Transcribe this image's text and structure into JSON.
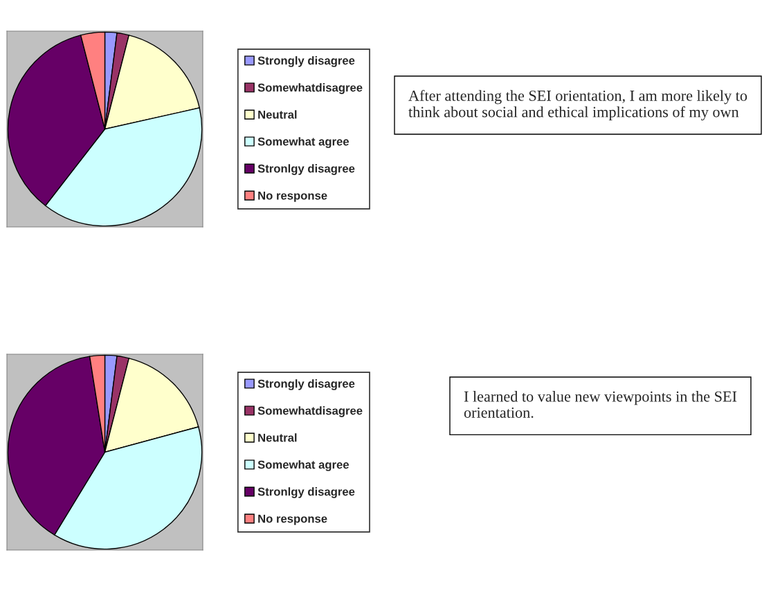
{
  "chart_data": [
    {
      "type": "pie",
      "title": "After attending the SEI orientation, I am more likely to think about social and ethical implications of my own",
      "categories": [
        "Strongly disagree",
        "Somewhatdisagree",
        "Neutral",
        "Somewhat agree",
        "Stronlgy disagree",
        "No response"
      ],
      "values": [
        2,
        2,
        17.5,
        39,
        35.5,
        4
      ],
      "colors": [
        "#9999ff",
        "#993366",
        "#ffffcc",
        "#ccffff",
        "#660066",
        "#ff8080"
      ],
      "legend": "right"
    },
    {
      "type": "pie",
      "title": "I learned to value new viewpoints in the SEI orientation.",
      "categories": [
        "Strongly disagree",
        "Somewhatdisagree",
        "Neutral",
        "Somewhat agree",
        "Stronlgy disagree",
        "No response"
      ],
      "values": [
        2,
        2,
        16.8,
        37.9,
        38.8,
        2.5
      ],
      "colors": [
        "#9999ff",
        "#993366",
        "#ffffcc",
        "#ccffff",
        "#660066",
        "#ff8080"
      ],
      "legend": "right"
    }
  ]
}
